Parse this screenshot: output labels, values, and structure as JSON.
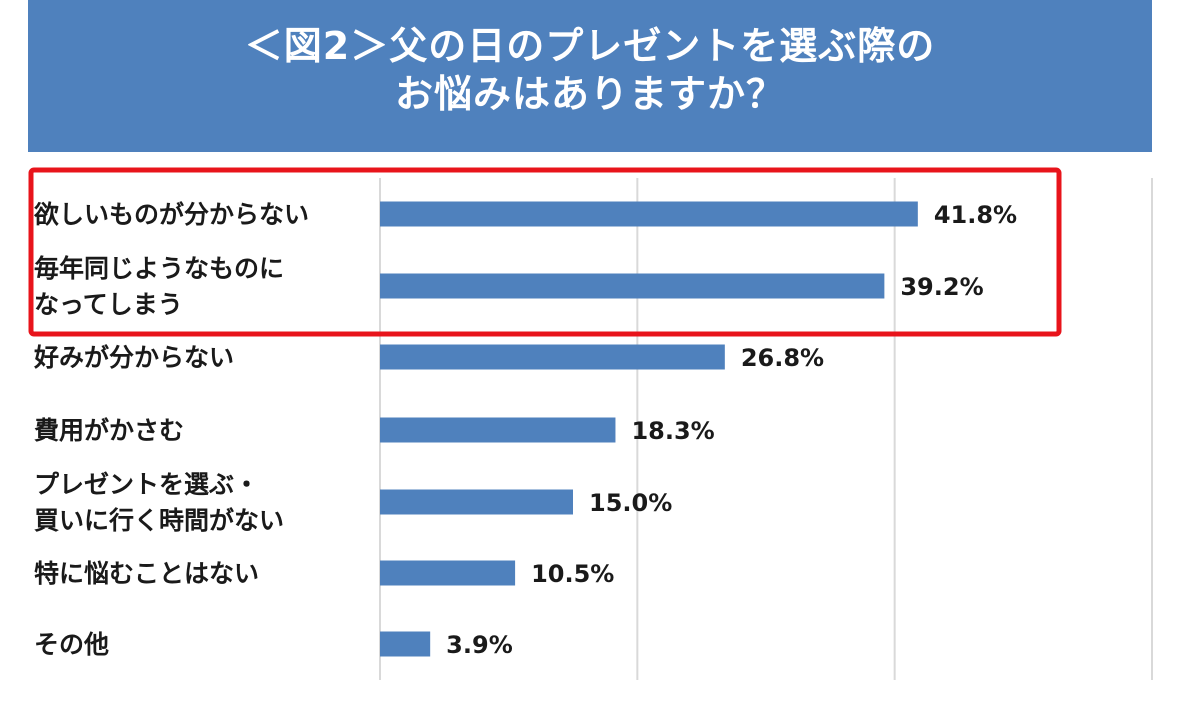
{
  "chart_data": {
    "type": "bar",
    "orientation": "horizontal",
    "title_lines": [
      "＜図2＞父の日のプレゼントを選ぶ際の",
      "お悩みはありますか？"
    ],
    "categories": [
      [
        "欲しいものが分からない"
      ],
      [
        "毎年同じようなものに",
        "なってしまう"
      ],
      [
        "好みが分からない"
      ],
      [
        "費用がかさむ"
      ],
      [
        "プレゼントを選ぶ・",
        "買いに行く時間がない"
      ],
      [
        "特に悩むことはない"
      ],
      [
        "その他"
      ]
    ],
    "values": [
      41.8,
      39.2,
      26.8,
      18.3,
      15.0,
      10.5,
      3.9
    ],
    "value_labels": [
      "41.8%",
      "39.2%",
      "26.8%",
      "18.3%",
      "15.0%",
      "10.5%",
      "3.9%"
    ],
    "xlim": [
      0,
      60
    ],
    "grid_x": [
      0,
      20,
      40,
      60
    ],
    "highlight": {
      "categories": [
        0,
        1
      ],
      "color": "#E8141B"
    },
    "colors": {
      "bar": "#4F81BD",
      "banner": "#4F81BD"
    }
  }
}
